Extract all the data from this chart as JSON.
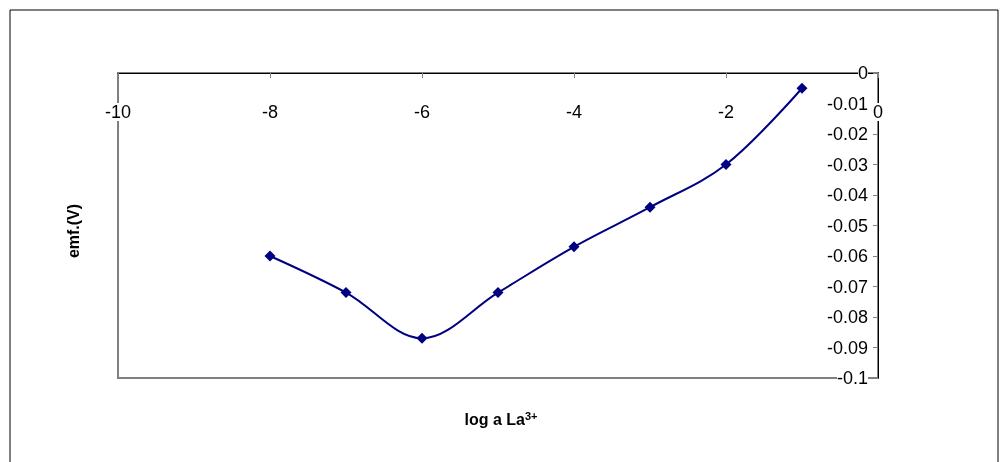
{
  "chart_data": {
    "type": "line",
    "xlabel": "log a La$^{3+}$",
    "ylabel": "emf.(V)",
    "x": [
      -8,
      -7,
      -6,
      -5,
      -4,
      -3,
      -2,
      -1
    ],
    "series": [
      {
        "color": "#000080",
        "values": [
          -0.06,
          -0.072,
          -0.087,
          -0.072,
          -0.057,
          -0.044,
          -0.03,
          -0.005
        ]
      }
    ],
    "xlim": [
      -10,
      0
    ],
    "xticks": [
      -10,
      -8,
      -6,
      -4,
      -2,
      0
    ],
    "ylim": [
      -0.1,
      0
    ],
    "yticks": [
      -0.1,
      -0.09,
      -0.08,
      -0.07,
      -0.06,
      -0.05,
      -0.04,
      -0.03,
      -0.02,
      -0.01,
      0
    ],
    "marker": "diamond",
    "line_style": "solid",
    "grid": false
  }
}
